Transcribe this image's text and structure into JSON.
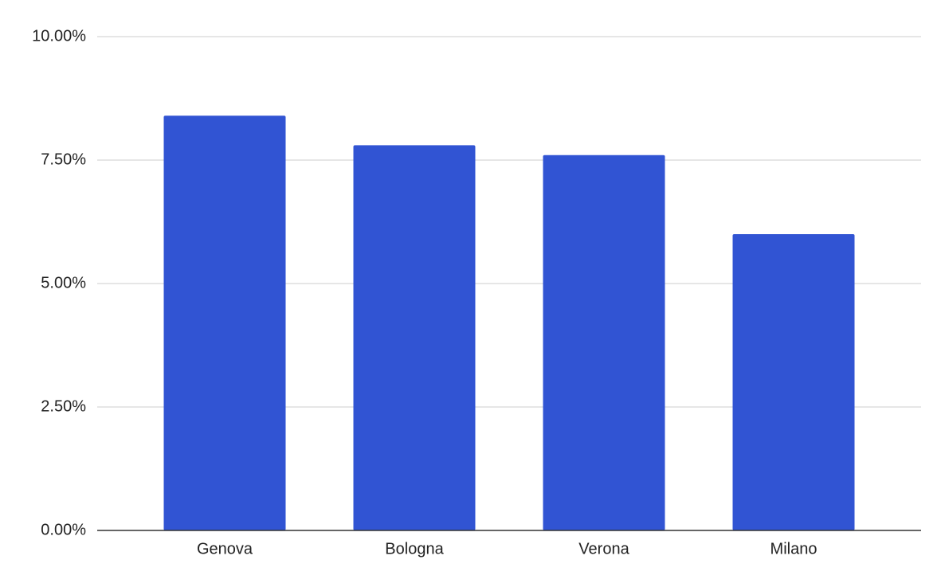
{
  "chart_data": {
    "type": "bar",
    "categories": [
      "Genova",
      "Bologna",
      "Verona",
      "Milano"
    ],
    "values": [
      8.4,
      7.8,
      7.6,
      6.0
    ],
    "color": "#3154d3",
    "ylim": [
      0,
      10
    ],
    "yticks": [
      {
        "value": 0,
        "label": "0.00%"
      },
      {
        "value": 2.5,
        "label": "2.50%"
      },
      {
        "value": 5,
        "label": "5.00%"
      },
      {
        "value": 7.5,
        "label": "7.50%"
      },
      {
        "value": 10,
        "label": "10.00%"
      }
    ],
    "grid": true
  }
}
